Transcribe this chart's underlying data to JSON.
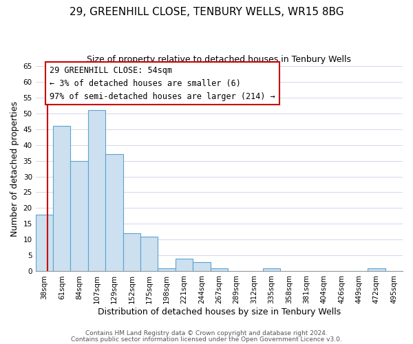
{
  "title": "29, GREENHILL CLOSE, TENBURY WELLS, WR15 8BG",
  "subtitle": "Size of property relative to detached houses in Tenbury Wells",
  "xlabel": "Distribution of detached houses by size in Tenbury Wells",
  "ylabel": "Number of detached properties",
  "bar_labels": [
    "38sqm",
    "61sqm",
    "84sqm",
    "107sqm",
    "129sqm",
    "152sqm",
    "175sqm",
    "198sqm",
    "221sqm",
    "244sqm",
    "267sqm",
    "289sqm",
    "312sqm",
    "335sqm",
    "358sqm",
    "381sqm",
    "404sqm",
    "426sqm",
    "449sqm",
    "472sqm",
    "495sqm"
  ],
  "bar_heights": [
    18,
    46,
    35,
    51,
    37,
    12,
    11,
    1,
    4,
    3,
    1,
    0,
    0,
    1,
    0,
    0,
    0,
    0,
    0,
    1,
    0
  ],
  "bar_color": "#cce0f0",
  "bar_edge_color": "#5ba3d0",
  "annotation_line1": "29 GREENHILL CLOSE: 54sqm",
  "annotation_line2": "← 3% of detached houses are smaller (6)",
  "annotation_line3": "97% of semi-detached houses are larger (214) →",
  "annotation_box_edge_color": "#cc0000",
  "marker_line_color": "#cc0000",
  "ylim": [
    0,
    65
  ],
  "yticks": [
    0,
    5,
    10,
    15,
    20,
    25,
    30,
    35,
    40,
    45,
    50,
    55,
    60,
    65
  ],
  "footer_line1": "Contains HM Land Registry data © Crown copyright and database right 2024.",
  "footer_line2": "Contains public sector information licensed under the Open Government Licence v3.0.",
  "title_fontsize": 11,
  "subtitle_fontsize": 9,
  "axis_label_fontsize": 9,
  "tick_fontsize": 7.5,
  "annotation_fontsize": 8.5,
  "footer_fontsize": 6.5
}
